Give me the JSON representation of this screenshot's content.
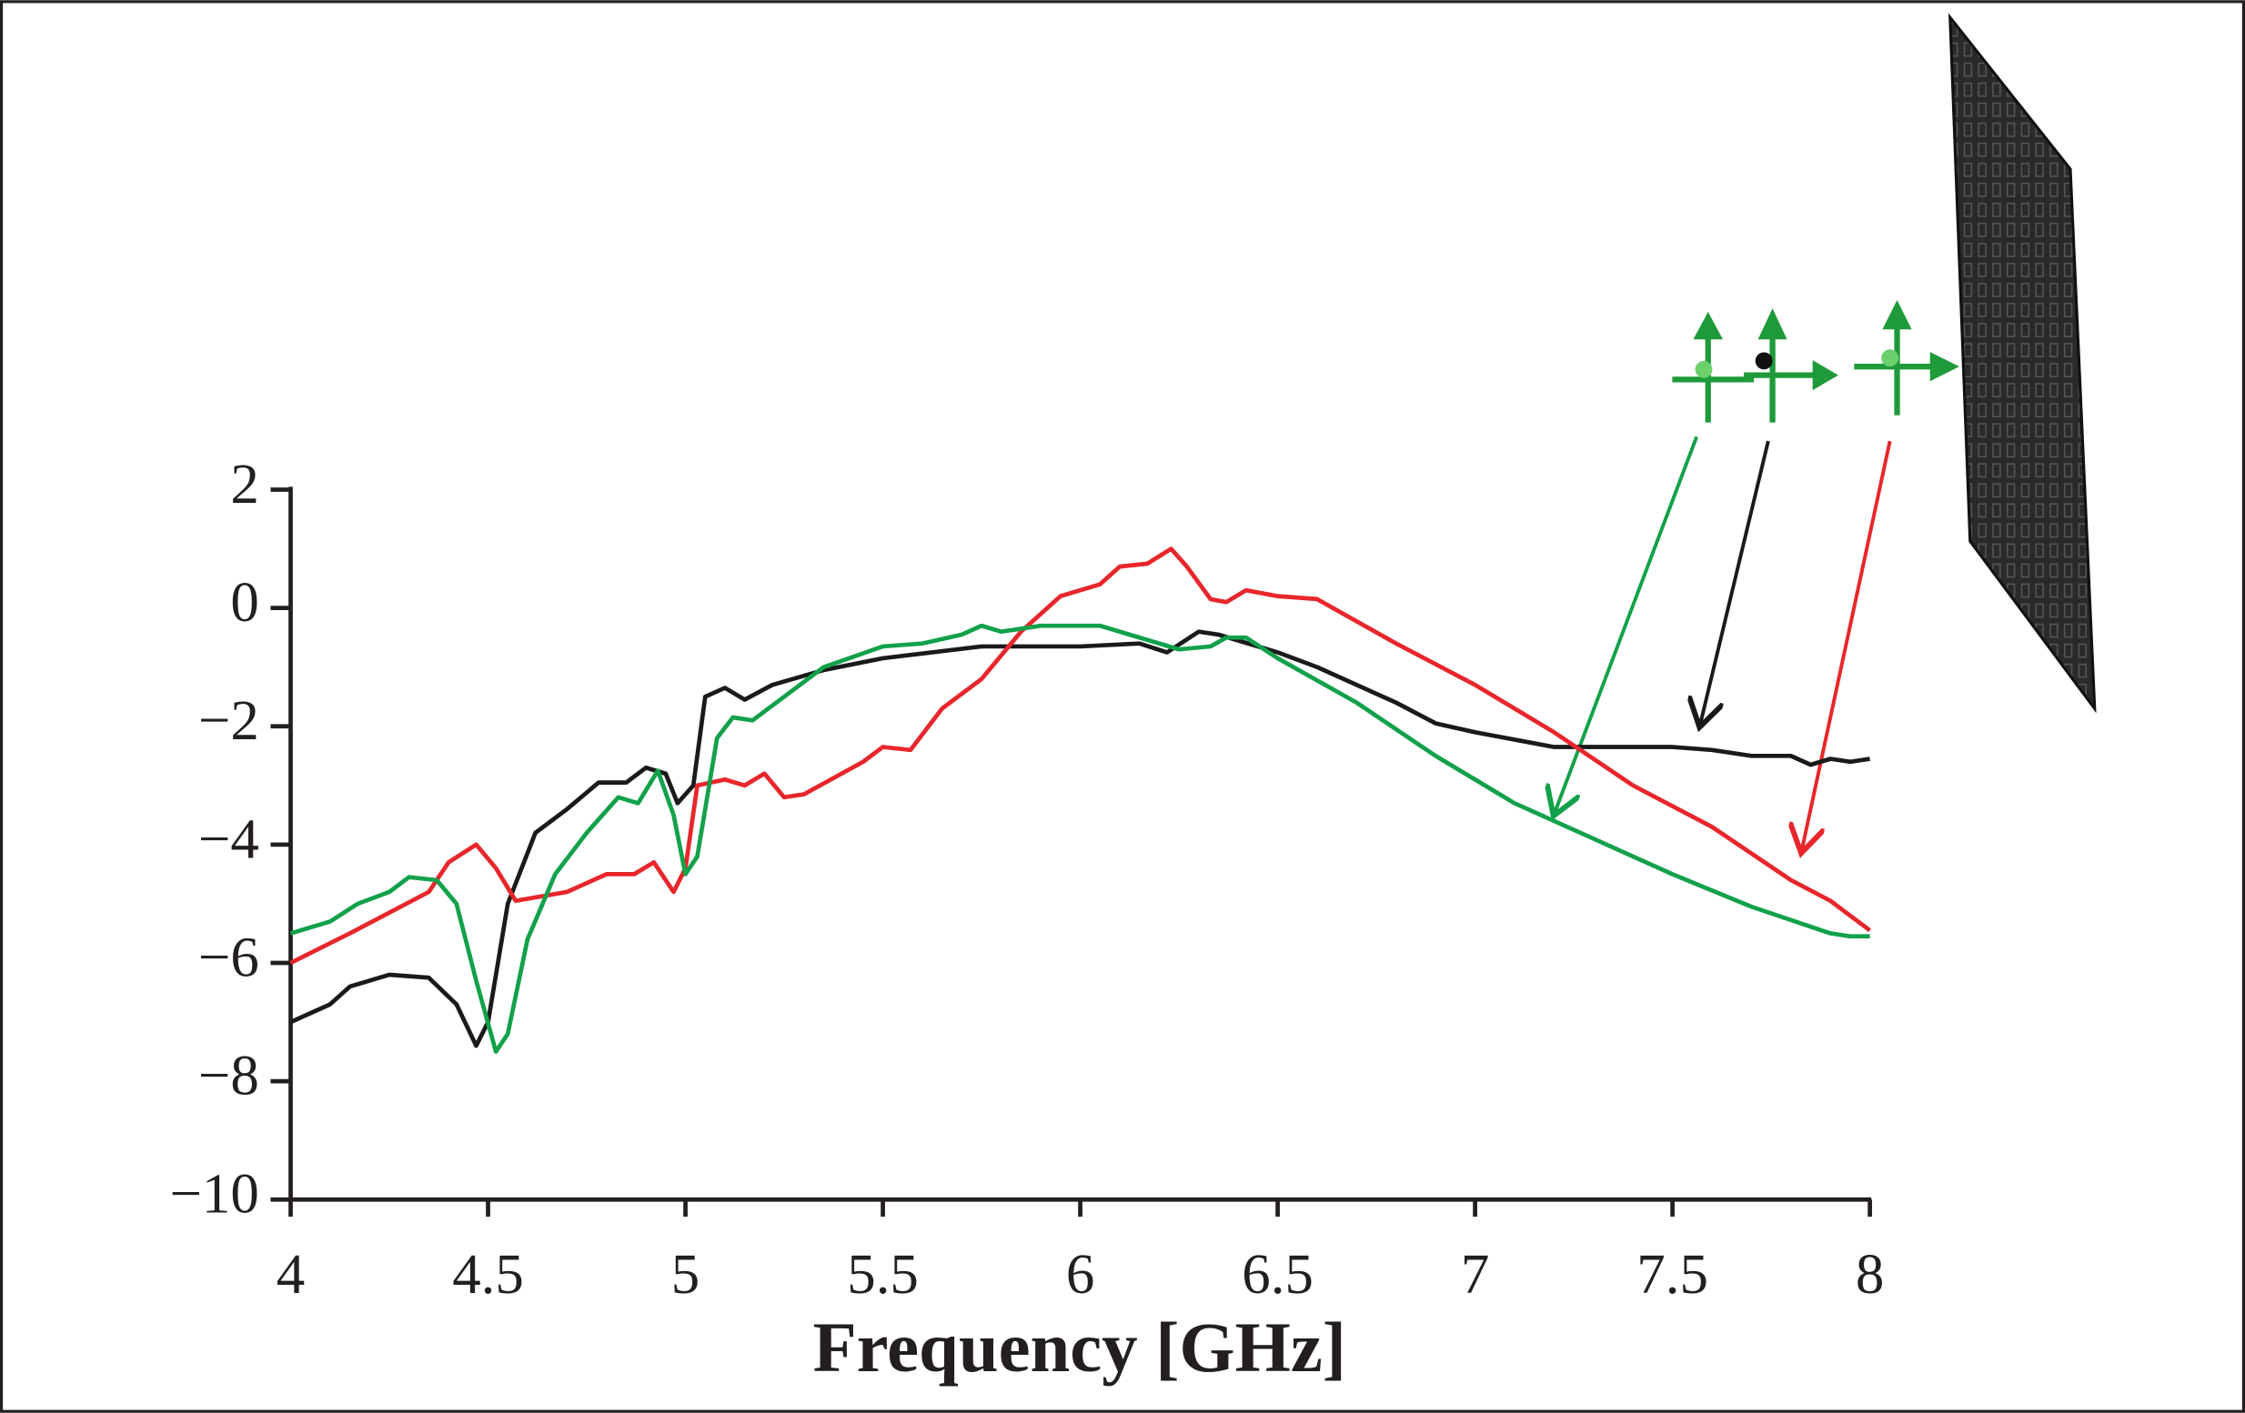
{
  "chart_data": {
    "type": "line",
    "x_label": "Frequency [GHz]",
    "xlim": [
      4,
      8
    ],
    "xticks": [
      4,
      4.5,
      5,
      5.5,
      6,
      6.5,
      7,
      7.5,
      8
    ],
    "ylim": [
      -10,
      2
    ],
    "yticks": [
      {
        "value": 2,
        "label": "2"
      },
      {
        "value": 0,
        "label": "0"
      },
      {
        "value": -2,
        "label": "−2"
      },
      {
        "value": -4,
        "label": "−4"
      },
      {
        "value": -6,
        "label": "−6"
      },
      {
        "value": -8,
        "label": "−8"
      },
      {
        "value": -10,
        "label": "−10"
      }
    ],
    "grid": false,
    "series": [
      {
        "color": "#1a1a1a",
        "x": [
          4.0,
          4.1,
          4.15,
          4.25,
          4.35,
          4.42,
          4.47,
          4.5,
          4.55,
          4.62,
          4.7,
          4.78,
          4.85,
          4.9,
          4.95,
          4.98,
          5.02,
          5.05,
          5.1,
          5.15,
          5.22,
          5.35,
          5.5,
          5.75,
          6.0,
          6.15,
          6.22,
          6.3,
          6.35,
          6.5,
          6.6,
          6.8,
          6.9,
          7.0,
          7.2,
          7.3,
          7.5,
          7.6,
          7.7,
          7.8,
          7.85,
          7.9,
          7.95,
          8.0
        ],
        "values": [
          -7.0,
          -6.7,
          -6.4,
          -6.2,
          -6.25,
          -6.7,
          -7.4,
          -7.0,
          -5.0,
          -3.8,
          -3.4,
          -2.95,
          -2.95,
          -2.7,
          -2.8,
          -3.3,
          -3.0,
          -1.5,
          -1.35,
          -1.55,
          -1.3,
          -1.05,
          -0.85,
          -0.65,
          -0.65,
          -0.6,
          -0.75,
          -0.4,
          -0.45,
          -0.75,
          -1.0,
          -1.6,
          -1.95,
          -2.1,
          -2.35,
          -2.35,
          -2.35,
          -2.4,
          -2.5,
          -2.5,
          -2.65,
          -2.55,
          -2.6,
          -2.55
        ]
      },
      {
        "color": "#e8262b",
        "x": [
          4.0,
          4.15,
          4.35,
          4.4,
          4.47,
          4.52,
          4.57,
          4.7,
          4.8,
          4.87,
          4.92,
          4.97,
          5.0,
          5.03,
          5.1,
          5.15,
          5.2,
          5.25,
          5.3,
          5.45,
          5.5,
          5.57,
          5.65,
          5.75,
          5.85,
          5.95,
          6.05,
          6.1,
          6.17,
          6.23,
          6.27,
          6.33,
          6.37,
          6.42,
          6.5,
          6.6,
          6.8,
          7.0,
          7.2,
          7.4,
          7.6,
          7.8,
          7.9,
          8.0
        ],
        "values": [
          -6.0,
          -5.5,
          -4.8,
          -4.3,
          -4.0,
          -4.4,
          -4.95,
          -4.8,
          -4.5,
          -4.5,
          -4.3,
          -4.8,
          -4.4,
          -3.0,
          -2.9,
          -3.0,
          -2.8,
          -3.2,
          -3.15,
          -2.6,
          -2.35,
          -2.4,
          -1.7,
          -1.2,
          -0.4,
          0.2,
          0.4,
          0.7,
          0.75,
          1.0,
          0.7,
          0.15,
          0.1,
          0.3,
          0.2,
          0.15,
          -0.6,
          -1.3,
          -2.1,
          -3.0,
          -3.7,
          -4.6,
          -4.95,
          -5.45
        ]
      },
      {
        "color": "#12a14b",
        "x": [
          4.0,
          4.1,
          4.17,
          4.25,
          4.3,
          4.37,
          4.42,
          4.47,
          4.52,
          4.55,
          4.6,
          4.67,
          4.75,
          4.83,
          4.88,
          4.93,
          4.97,
          5.0,
          5.03,
          5.08,
          5.12,
          5.17,
          5.25,
          5.35,
          5.5,
          5.6,
          5.7,
          5.75,
          5.8,
          5.9,
          6.05,
          6.15,
          6.25,
          6.33,
          6.37,
          6.42,
          6.5,
          6.7,
          6.9,
          7.1,
          7.3,
          7.5,
          7.7,
          7.9,
          7.95,
          8.0
        ],
        "values": [
          -5.5,
          -5.3,
          -5.0,
          -4.8,
          -4.55,
          -4.6,
          -5.0,
          -6.3,
          -7.5,
          -7.2,
          -5.6,
          -4.5,
          -3.8,
          -3.2,
          -3.3,
          -2.75,
          -3.5,
          -4.5,
          -4.2,
          -2.2,
          -1.85,
          -1.9,
          -1.5,
          -1.0,
          -0.65,
          -0.6,
          -0.45,
          -0.3,
          -0.4,
          -0.3,
          -0.3,
          -0.5,
          -0.7,
          -0.65,
          -0.5,
          -0.5,
          -0.85,
          -1.6,
          -2.5,
          -3.3,
          -3.9,
          -4.5,
          -5.05,
          -5.5,
          -5.55,
          -5.55
        ]
      }
    ]
  }
}
